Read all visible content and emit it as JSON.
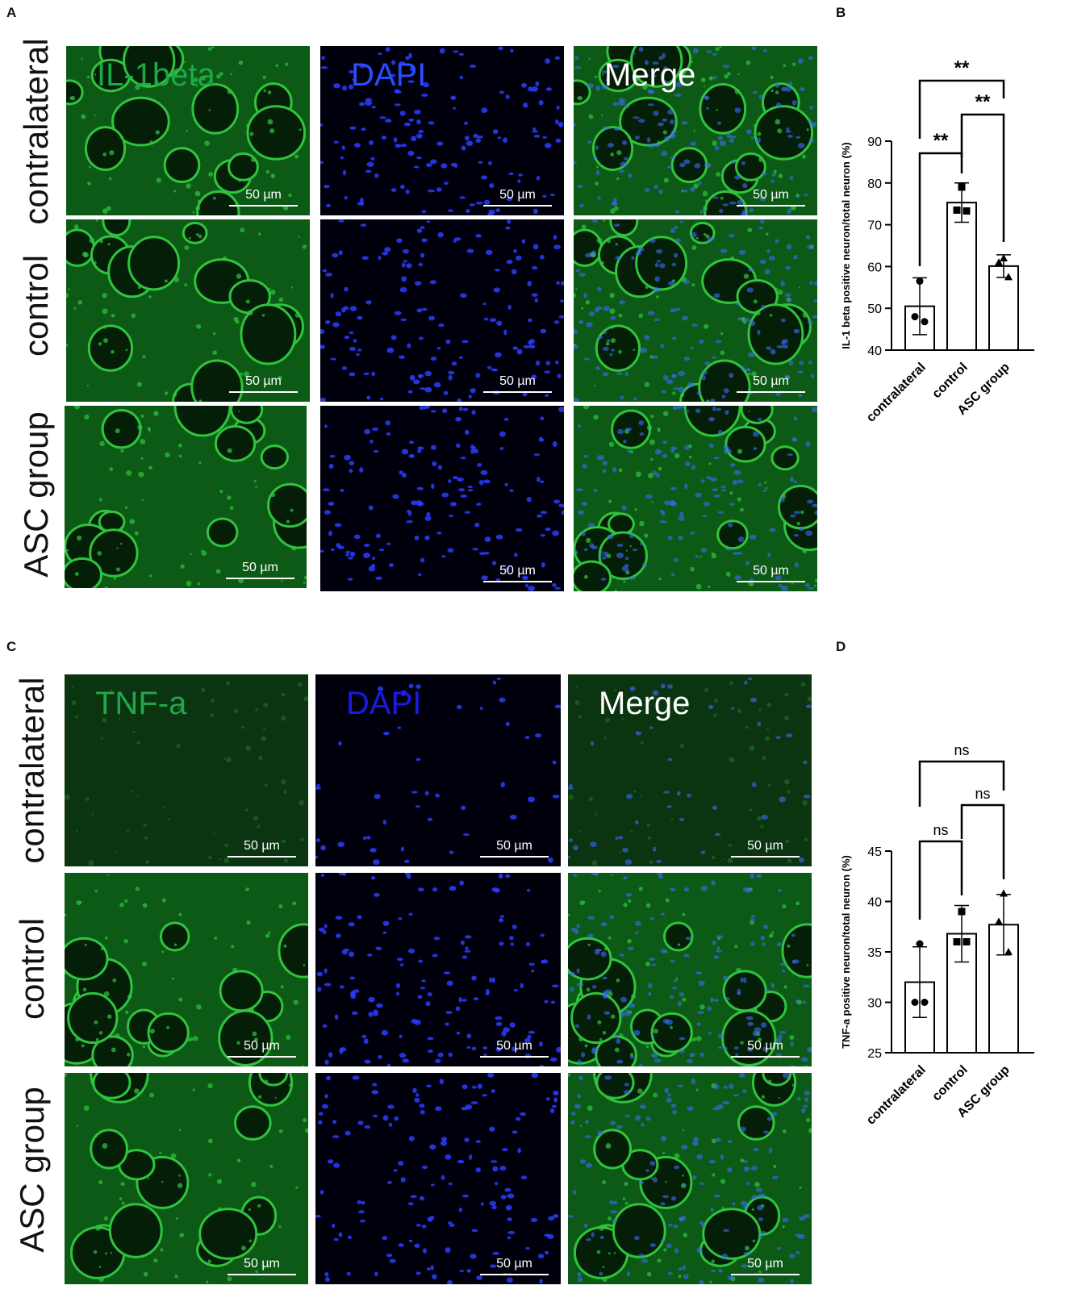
{
  "panels": {
    "A": {
      "label": "A",
      "rows": [
        "contralateral",
        "control",
        "ASC group"
      ],
      "channels": [
        {
          "name": "IL-1beta",
          "color": "#1fa84a"
        },
        {
          "name": "DAPI",
          "color": "#2a4cff"
        },
        {
          "name": "Merge",
          "color": "#ffffff"
        }
      ],
      "scale_label": "50 µm"
    },
    "C": {
      "label": "C",
      "rows": [
        "contralateral",
        "control",
        "ASC group"
      ],
      "channels": [
        {
          "name": "TNF-a",
          "color": "#1fa84a"
        },
        {
          "name": "DAPI",
          "color": "#1a1ae6"
        },
        {
          "name": "Merge",
          "color": "#ffffff"
        }
      ],
      "scale_label": "50 µm"
    }
  },
  "chart_data": [
    {
      "panel": "B",
      "type": "bar",
      "categories": [
        "contralateral",
        "control",
        "ASC group"
      ],
      "values": [
        50.5,
        75.3,
        60.1
      ],
      "error": [
        6.8,
        4.7,
        2.7
      ],
      "points": [
        [
          56.5,
          48.0,
          46.8
        ],
        [
          79.0,
          73.5,
          73.3
        ],
        [
          62.0,
          61.0,
          57.5
        ]
      ],
      "point_markers": [
        "circle",
        "square",
        "triangle"
      ],
      "ylabel": "IL-1 beta positive neuron/total neuron (%)",
      "ylim": [
        40,
        90
      ],
      "yticks": [
        40,
        50,
        60,
        70,
        80,
        90
      ],
      "significance": [
        {
          "pair": [
            "contralateral",
            "control"
          ],
          "label": "**"
        },
        {
          "pair": [
            "control",
            "ASC group"
          ],
          "label": "**"
        },
        {
          "pair": [
            "contralateral",
            "ASC group"
          ],
          "label": "**"
        }
      ]
    },
    {
      "panel": "D",
      "type": "bar",
      "categories": [
        "contralateral",
        "control",
        "ASC group"
      ],
      "values": [
        32.0,
        36.8,
        37.7
      ],
      "error": [
        3.5,
        2.8,
        3.0
      ],
      "points": [
        [
          35.8,
          30.0,
          30.0
        ],
        [
          39.0,
          36.0,
          36.0
        ],
        [
          40.8,
          38.0,
          35.0
        ]
      ],
      "point_markers": [
        "circle",
        "square",
        "triangle"
      ],
      "ylabel": "TNF-a positive neuron/total neuron (%)",
      "ylim": [
        25,
        45
      ],
      "yticks": [
        25,
        30,
        35,
        40,
        45
      ],
      "significance": [
        {
          "pair": [
            "contralateral",
            "control"
          ],
          "label": "ns"
        },
        {
          "pair": [
            "control",
            "ASC group"
          ],
          "label": "ns"
        },
        {
          "pair": [
            "contralateral",
            "ASC group"
          ],
          "label": "ns"
        }
      ]
    }
  ]
}
